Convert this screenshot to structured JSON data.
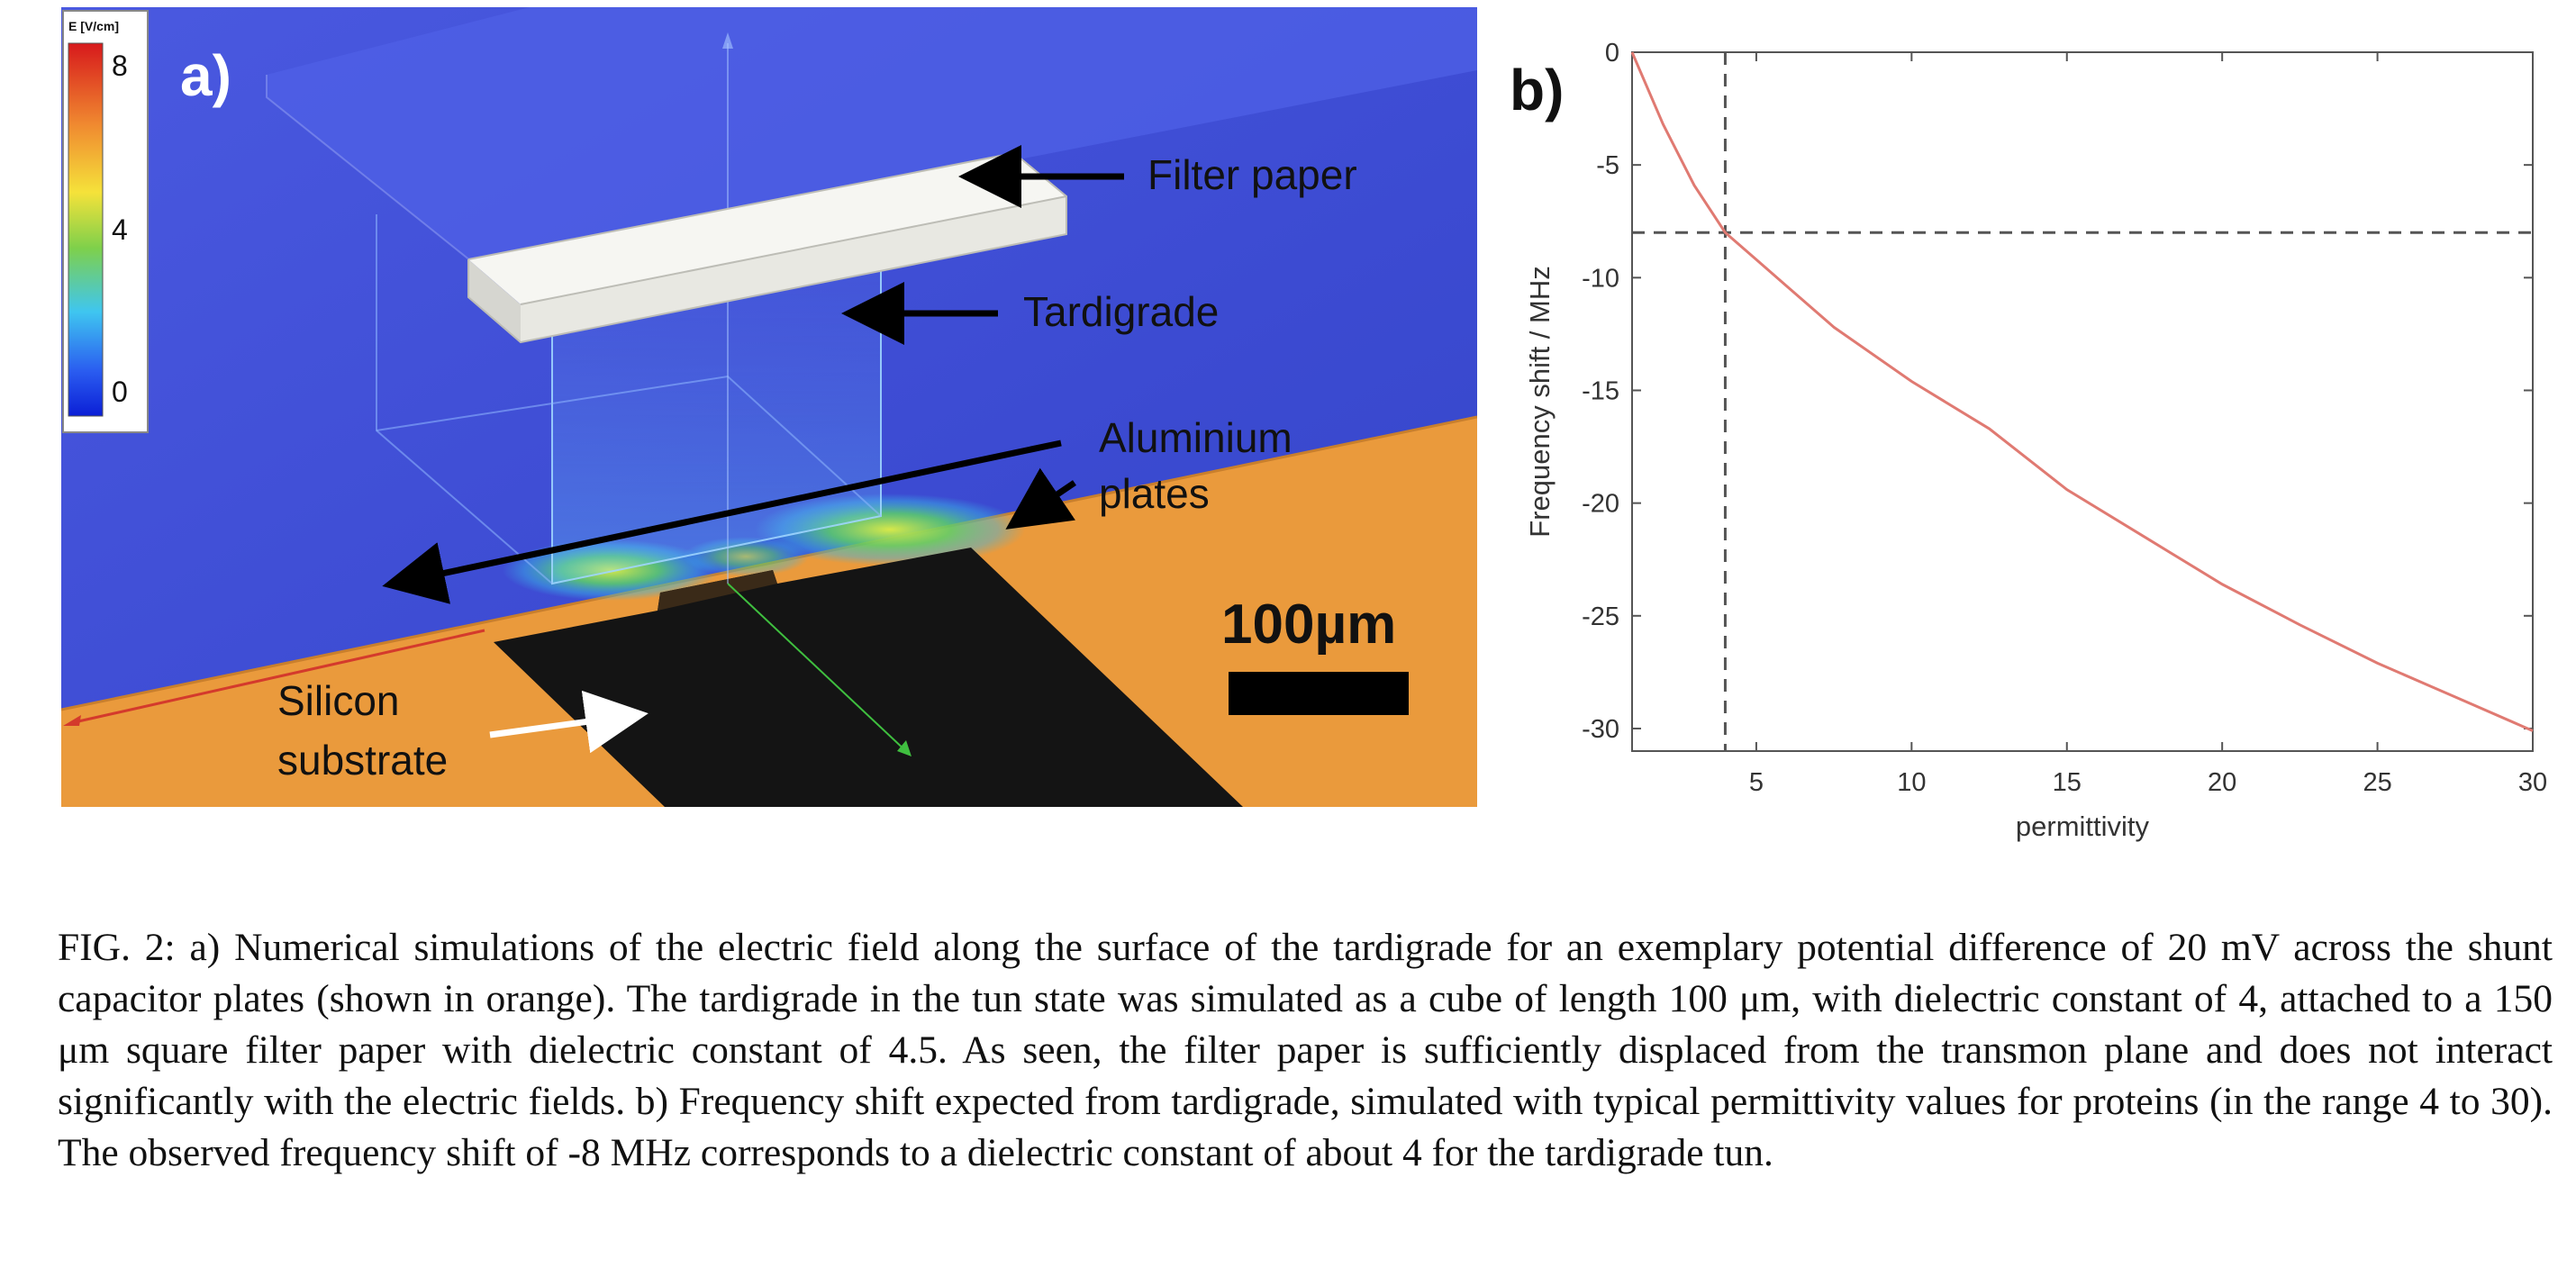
{
  "panel_a": {
    "label": "a)",
    "colorbar": {
      "title": "E [V/cm]",
      "ticks": [
        "8",
        "4",
        "0"
      ],
      "colors": [
        "#d7191c",
        "#fdae61",
        "#ffff00",
        "#66cc33",
        "#33ccff",
        "#1a1aff",
        "#0000cc"
      ]
    },
    "annotations": {
      "filter_paper": "Filter paper",
      "tardigrade": "Tardigrade",
      "aluminium_line1": "Aluminium",
      "aluminium_line2": "plates",
      "silicon_line1": "Silicon",
      "silicon_line2": "substrate"
    },
    "scale_bar": "100µm",
    "colors": {
      "background": "#3f4fd6",
      "substrate": "#ea9a3c",
      "plates": "#141414",
      "paper": "#f4f4f0"
    }
  },
  "panel_b": {
    "label": "b)"
  },
  "chart_data": {
    "type": "line",
    "title": "",
    "xlabel": "permittivity",
    "ylabel": "Frequency shift / MHz",
    "xlim": [
      1,
      30
    ],
    "ylim": [
      -31,
      0
    ],
    "xticks": [
      5,
      10,
      15,
      20,
      25,
      30
    ],
    "yticks": [
      0,
      -5,
      -10,
      -15,
      -20,
      -25,
      -30
    ],
    "grid": false,
    "series": [
      {
        "color": "#e07a72",
        "x": [
          1,
          2,
          3,
          4,
          5,
          6,
          7.5,
          10,
          12.5,
          15,
          17.5,
          20,
          22.5,
          25,
          27.5,
          30
        ],
        "y": [
          0,
          -3.2,
          -5.9,
          -8.0,
          -9.2,
          -10.4,
          -12.2,
          -14.6,
          -16.7,
          -19.4,
          -21.5,
          -23.6,
          -25.4,
          -27.1,
          -28.6,
          -30.1
        ]
      }
    ],
    "reference_lines": {
      "vertical_x": 4,
      "horizontal_y": -8
    }
  },
  "caption": {
    "text": "FIG. 2:  a) Numerical simulations of the electric field along the surface of the tardigrade for an exemplary potential difference of 20 mV across the shunt capacitor plates (shown in orange). The tardigrade in the tun state was simulated as a cube of length 100 μm, with dielectric constant of 4, attached to a 150 μm square filter paper with dielectric constant of 4.5. As seen, the filter paper is sufficiently displaced from the transmon plane and does not interact significantly with the electric fields. b) Frequency shift expected from tardigrade, simulated with typical permittivity values for proteins (in the range 4 to 30). The observed frequency shift of -8 MHz corresponds to a dielectric constant of about 4 for the tardigrade tun."
  }
}
